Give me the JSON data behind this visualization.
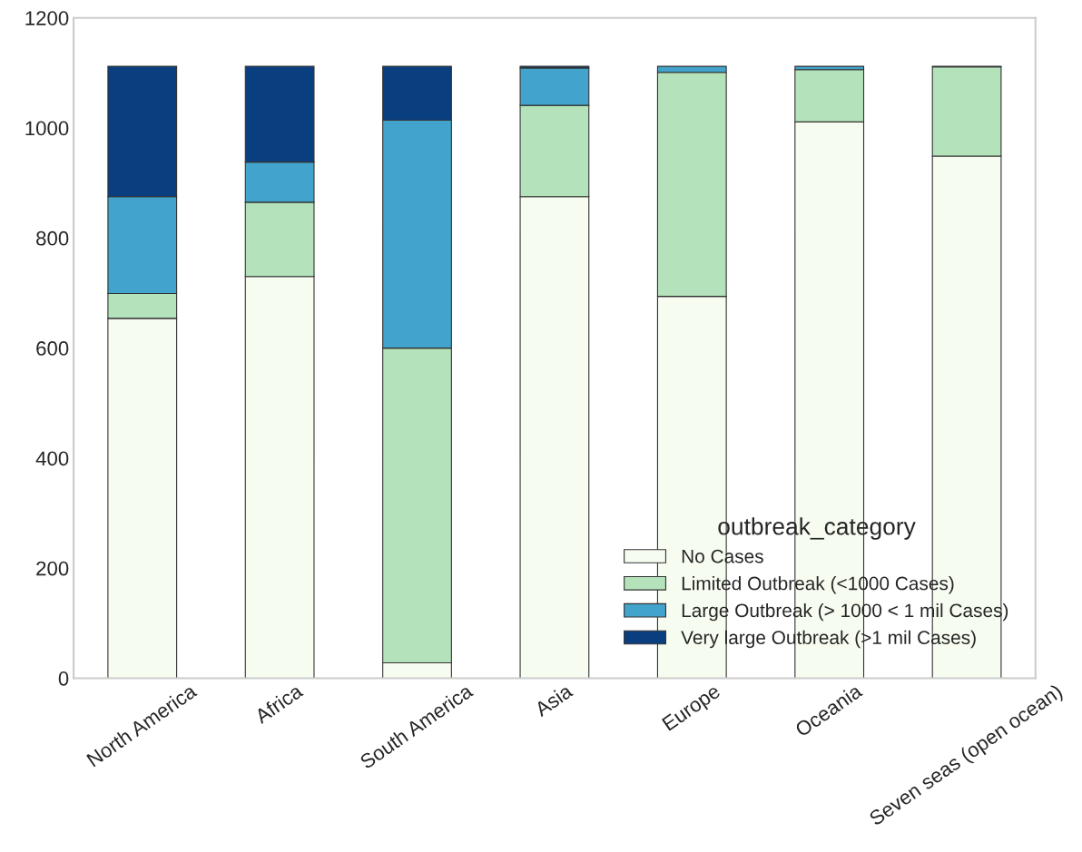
{
  "chart_data": {
    "type": "bar",
    "stacked": true,
    "legend_title": "outbreak_category",
    "legend": "bottom right",
    "grid": false,
    "categories": [
      "North America",
      "Africa",
      "South America",
      "Asia",
      "Europe",
      "Oceania",
      "Seven seas (open ocean)"
    ],
    "series": [
      {
        "name": "No Cases",
        "color": "#f7fcf0",
        "values": [
          654,
          730,
          28,
          875,
          694,
          1011,
          949
        ]
      },
      {
        "name": "Limited Outbreak (<1000 Cases)",
        "color": "#b4e2ba",
        "values": [
          45,
          135,
          572,
          166,
          407,
          95,
          162
        ]
      },
      {
        "name": "Large Outbreak (> 1000 < 1 mil Cases)",
        "color": "#42a4cc",
        "values": [
          176,
          73,
          414,
          68,
          11,
          6,
          1
        ]
      },
      {
        "name": "Very large Outbreak (>1 mil Cases)",
        "color": "#093f7f",
        "values": [
          237,
          174,
          98,
          3,
          0,
          0,
          0
        ]
      }
    ],
    "ylim": [
      0,
      1200
    ],
    "yticks": [
      0,
      200,
      400,
      600,
      800,
      1000,
      1200
    ]
  }
}
